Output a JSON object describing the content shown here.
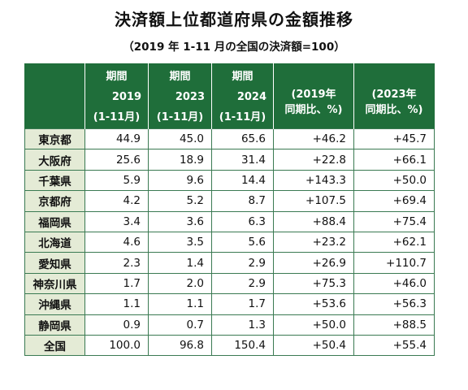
{
  "title": "決済額上位都道府県の金額推移",
  "subtitle": "（2019 年 1-11 月の全国の決済額=100）",
  "header": {
    "period_label": "期間",
    "col_2019_year": "2019",
    "col_2023_year": "2023",
    "col_2024_year": "2024",
    "range_label": "(1-11月)",
    "ratio_2019_line1": "(2019年",
    "ratio_2023_line1": "(2023年",
    "ratio_line2": "同期比、%)"
  },
  "rows": [
    {
      "pref": "東京都",
      "v2019": "44.9",
      "v2023": "45.0",
      "v2024": "65.6",
      "r2019": "+46.2",
      "r2023": "+45.7"
    },
    {
      "pref": "大阪府",
      "v2019": "25.6",
      "v2023": "18.9",
      "v2024": "31.4",
      "r2019": "+22.8",
      "r2023": "+66.1"
    },
    {
      "pref": "千葉県",
      "v2019": "5.9",
      "v2023": "9.6",
      "v2024": "14.4",
      "r2019": "+143.3",
      "r2023": "+50.0"
    },
    {
      "pref": "京都府",
      "v2019": "4.2",
      "v2023": "5.2",
      "v2024": "8.7",
      "r2019": "+107.5",
      "r2023": "+69.4"
    },
    {
      "pref": "福岡県",
      "v2019": "3.4",
      "v2023": "3.6",
      "v2024": "6.3",
      "r2019": "+88.4",
      "r2023": "+75.4"
    },
    {
      "pref": "北海道",
      "v2019": "4.6",
      "v2023": "3.5",
      "v2024": "5.6",
      "r2019": "+23.2",
      "r2023": "+62.1"
    },
    {
      "pref": "愛知県",
      "v2019": "2.3",
      "v2023": "1.4",
      "v2024": "2.9",
      "r2019": "+26.9",
      "r2023": "+110.7"
    },
    {
      "pref": "神奈川県",
      "v2019": "1.7",
      "v2023": "2.0",
      "v2024": "2.9",
      "r2019": "+75.3",
      "r2023": "+46.0"
    },
    {
      "pref": "沖縄県",
      "v2019": "1.1",
      "v2023": "1.1",
      "v2024": "1.7",
      "r2019": "+53.6",
      "r2023": "+56.3"
    },
    {
      "pref": "静岡県",
      "v2019": "0.9",
      "v2023": "0.7",
      "v2024": "1.3",
      "r2019": "+50.0",
      "r2023": "+88.5"
    },
    {
      "pref": "全国",
      "v2019": "100.0",
      "v2023": "96.8",
      "v2024": "150.4",
      "r2019": "+50.4",
      "r2023": "+55.4"
    }
  ],
  "colors": {
    "header_bg": "#1f6e3a",
    "pref_bg": "#e4ebd6",
    "border": "#3a7a52"
  }
}
